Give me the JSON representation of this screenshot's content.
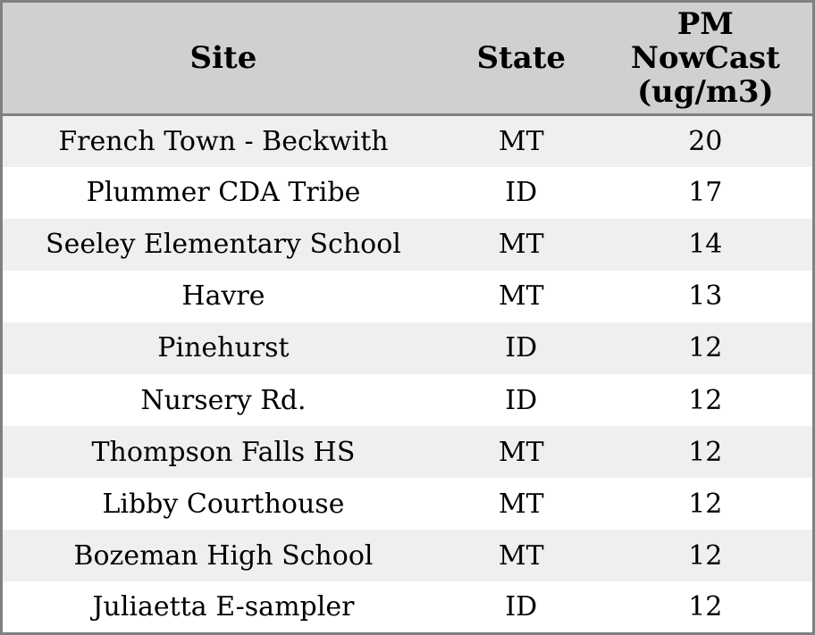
{
  "chart_data": {
    "type": "table",
    "columns": [
      "Site",
      "State",
      "PM NowCast (ug/m3)"
    ],
    "pm_header_lines": [
      "PM",
      "NowCast",
      "(ug/m3)"
    ],
    "rows": [
      {
        "site": "French Town - Beckwith",
        "state": "MT",
        "pm_nowcast": 20
      },
      {
        "site": "Plummer CDA Tribe",
        "state": "ID",
        "pm_nowcast": 17
      },
      {
        "site": "Seeley Elementary School",
        "state": "MT",
        "pm_nowcast": 14
      },
      {
        "site": "Havre",
        "state": "MT",
        "pm_nowcast": 13
      },
      {
        "site": "Pinehurst",
        "state": "ID",
        "pm_nowcast": 12
      },
      {
        "site": "Nursery Rd.",
        "state": "ID",
        "pm_nowcast": 12
      },
      {
        "site": "Thompson Falls HS",
        "state": "MT",
        "pm_nowcast": 12
      },
      {
        "site": "Libby Courthouse",
        "state": "MT",
        "pm_nowcast": 12
      },
      {
        "site": "Bozeman High School",
        "state": "MT",
        "pm_nowcast": 12
      },
      {
        "site": "Juliaetta E-sampler",
        "state": "ID",
        "pm_nowcast": 12
      }
    ]
  },
  "colors": {
    "header_bg": "#d0d0d0",
    "row_alt_bg": "#efefef",
    "row_bg": "#ffffff",
    "border": "#808080",
    "text": "#000000"
  }
}
